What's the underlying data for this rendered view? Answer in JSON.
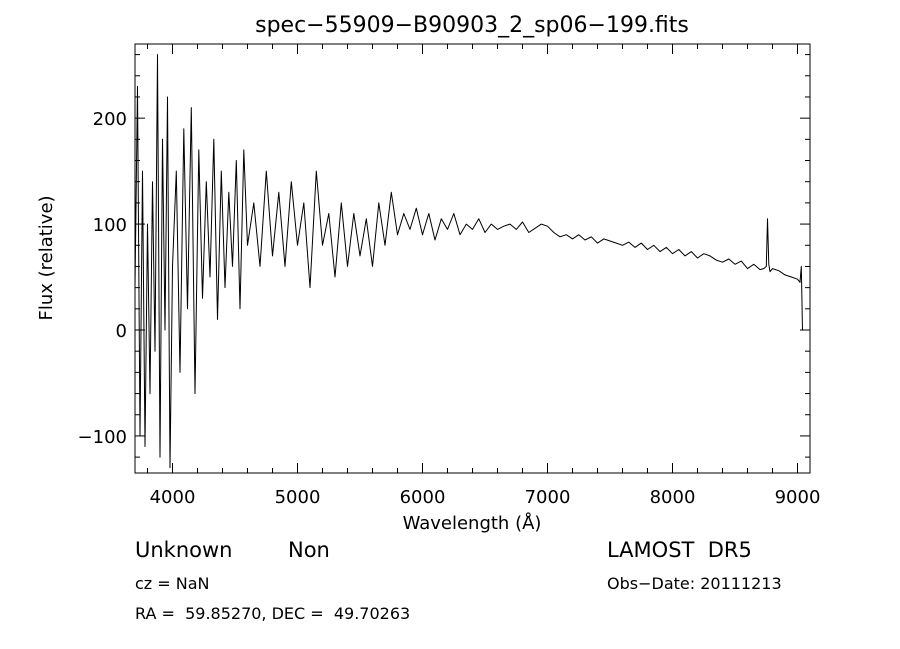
{
  "chart_data": {
    "type": "line",
    "title": "spec−55909−B90903_2_sp06−199.fits",
    "xlabel": "Wavelength (Å)",
    "ylabel": "Flux (relative)",
    "xlim": [
      3700,
      9100
    ],
    "ylim": [
      -135,
      270
    ],
    "xticks": [
      4000,
      5000,
      6000,
      7000,
      8000,
      9000
    ],
    "yticks": [
      -100,
      0,
      100,
      200
    ],
    "ytick_labels": [
      "−100",
      "0",
      "100",
      "200"
    ],
    "grid": false,
    "series": [
      {
        "color": "#000000",
        "x": [
          3700,
          3720,
          3740,
          3760,
          3780,
          3800,
          3820,
          3840,
          3860,
          3880,
          3900,
          3920,
          3940,
          3960,
          3980,
          4000,
          4030,
          4060,
          4090,
          4120,
          4150,
          4180,
          4210,
          4240,
          4270,
          4300,
          4330,
          4360,
          4390,
          4420,
          4450,
          4480,
          4510,
          4540,
          4570,
          4600,
          4650,
          4700,
          4750,
          4800,
          4850,
          4900,
          4950,
          5000,
          5050,
          5100,
          5150,
          5200,
          5250,
          5300,
          5350,
          5400,
          5450,
          5500,
          5550,
          5600,
          5650,
          5700,
          5750,
          5800,
          5850,
          5900,
          5950,
          6000,
          6050,
          6100,
          6150,
          6200,
          6250,
          6300,
          6350,
          6400,
          6450,
          6500,
          6550,
          6600,
          6650,
          6700,
          6750,
          6800,
          6850,
          6900,
          6950,
          7000,
          7050,
          7100,
          7150,
          7200,
          7250,
          7300,
          7350,
          7400,
          7450,
          7500,
          7550,
          7600,
          7650,
          7700,
          7750,
          7800,
          7850,
          7900,
          7950,
          8000,
          8050,
          8100,
          8150,
          8200,
          8250,
          8300,
          8350,
          8400,
          8450,
          8500,
          8550,
          8600,
          8650,
          8700,
          8730,
          8750,
          8760,
          8770,
          8780,
          8800,
          8850,
          8900,
          8950,
          9000,
          9020,
          9030,
          9040
        ],
        "y": [
          40,
          230,
          -100,
          150,
          -110,
          100,
          -60,
          140,
          -20,
          260,
          -120,
          180,
          0,
          220,
          -130,
          60,
          150,
          -40,
          190,
          20,
          210,
          -60,
          170,
          30,
          140,
          50,
          180,
          10,
          150,
          40,
          130,
          60,
          160,
          20,
          170,
          80,
          120,
          60,
          150,
          70,
          130,
          60,
          140,
          80,
          120,
          40,
          150,
          80,
          110,
          50,
          120,
          60,
          110,
          70,
          105,
          60,
          120,
          80,
          130,
          90,
          110,
          95,
          115,
          90,
          110,
          85,
          105,
          95,
          110,
          90,
          100,
          95,
          105,
          92,
          100,
          95,
          98,
          100,
          95,
          102,
          92,
          96,
          100,
          98,
          92,
          88,
          90,
          86,
          90,
          85,
          88,
          82,
          86,
          84,
          82,
          80,
          83,
          78,
          82,
          76,
          80,
          74,
          78,
          72,
          76,
          70,
          74,
          68,
          72,
          70,
          66,
          64,
          67,
          62,
          65,
          58,
          62,
          57,
          58,
          60,
          105,
          62,
          55,
          58,
          56,
          52,
          50,
          48,
          45,
          60,
          0
        ]
      }
    ],
    "annotations": {
      "line1_left_a": "Unknown",
      "line1_left_b": "Non",
      "line1_right": "LAMOST  DR5",
      "line2_left": "cz = NaN",
      "line2_right": "Obs−Date: 20111213",
      "line3_left": "RA =  59.85270, DEC =  49.70263"
    }
  }
}
